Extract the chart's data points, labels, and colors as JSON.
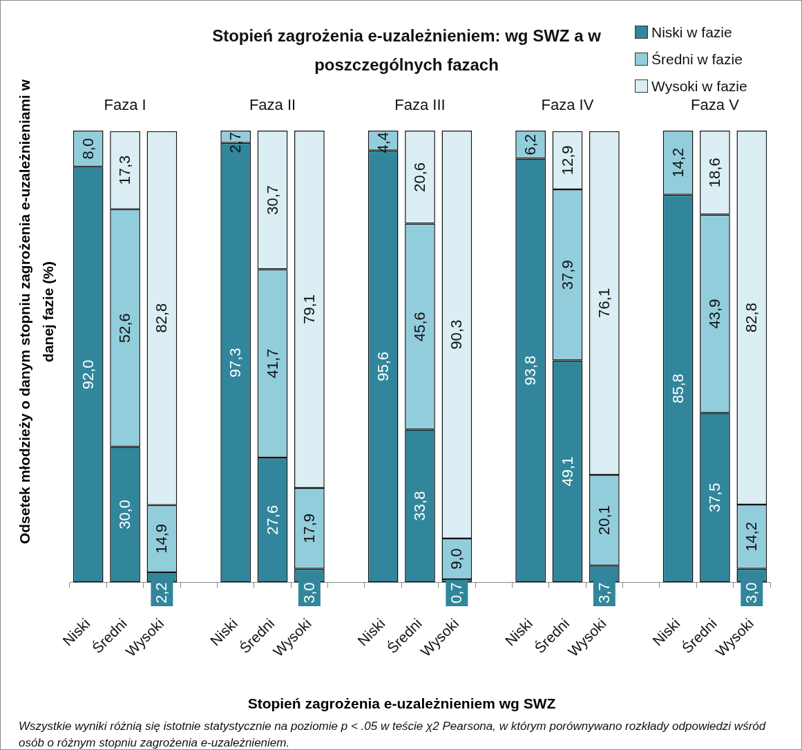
{
  "chart_data": {
    "type": "bar",
    "stacked": true,
    "title": "Stopień zagrożenia e-uzależnieniem: wg SWZ a w poszczególnych fazach",
    "xlabel": "Stopień zagrożenia e-uzależnieniem wg SWZ",
    "ylabel": "Odsetek młodzieży o danym stopniu zagrożenia e-uzależnieniami w danej fazie (%)",
    "legend": "top right",
    "grid": false,
    "categories": [
      "Niski",
      "Średni",
      "Wysoki",
      null,
      "Niski",
      "Średni",
      "Wysoki",
      null,
      "Niski",
      "Średni",
      "Wysoki",
      null,
      "Niski",
      "Średni",
      "Wysoki",
      null,
      "Niski",
      "Średni",
      "Wysoki"
    ],
    "series": [
      {
        "name": "Niski w fazie",
        "color": "#31869b",
        "values": [
          92.0,
          30.0,
          2.2,
          null,
          97.3,
          27.6,
          3.0,
          null,
          95.6,
          33.8,
          0.7,
          null,
          93.8,
          49.1,
          3.7,
          null,
          85.8,
          37.5,
          3.0
        ],
        "value_labels": [
          "92,0",
          "30,0",
          "2,2",
          null,
          "97,3",
          "27,6",
          "3,0",
          null,
          "95,6",
          "33,8",
          "0,7",
          null,
          "93,8",
          "49,1",
          "3,7",
          null,
          "85,8",
          "37,5",
          "3,0"
        ]
      },
      {
        "name": "Średni w fazie",
        "color": "#92cddc",
        "values": [
          8.0,
          52.6,
          14.9,
          null,
          2.7,
          41.7,
          17.9,
          null,
          4.4,
          45.6,
          9.0,
          null,
          6.2,
          37.9,
          20.1,
          null,
          14.2,
          43.9,
          14.2
        ],
        "value_labels": [
          "8,0",
          "52,6",
          "14,9",
          null,
          "2,7",
          "41,7",
          "17,9",
          null,
          "4,4",
          "45,6",
          "9,0",
          null,
          "6,2",
          "37,9",
          "20,1",
          null,
          "14,2",
          "43,9",
          "14,2"
        ]
      },
      {
        "name": "Wysoki w fazie",
        "color": "#daeef3",
        "values": [
          null,
          17.3,
          82.8,
          null,
          null,
          30.7,
          79.1,
          null,
          null,
          20.6,
          90.3,
          null,
          null,
          12.9,
          76.1,
          null,
          null,
          18.6,
          82.8
        ],
        "value_labels": [
          null,
          "17,3",
          "82,8",
          null,
          null,
          "30,7",
          "79,1",
          null,
          null,
          "20,6",
          "90,3",
          null,
          null,
          "12,9",
          "76,1",
          null,
          null,
          "18,6",
          "82,8"
        ]
      }
    ],
    "annotations": [
      "Faza I",
      "Faza II",
      "Faza III",
      "Faza IV",
      "Faza V",
      "Wszystkie wyniki różnią się istotnie statystycznie na poziomie  p < .05 w teście χ2 Pearsona, w którym porównywano rozkłady odpowiedzi wśród osób o różnym stopniu zagrożenia e-uzależnieniem."
    ]
  }
}
